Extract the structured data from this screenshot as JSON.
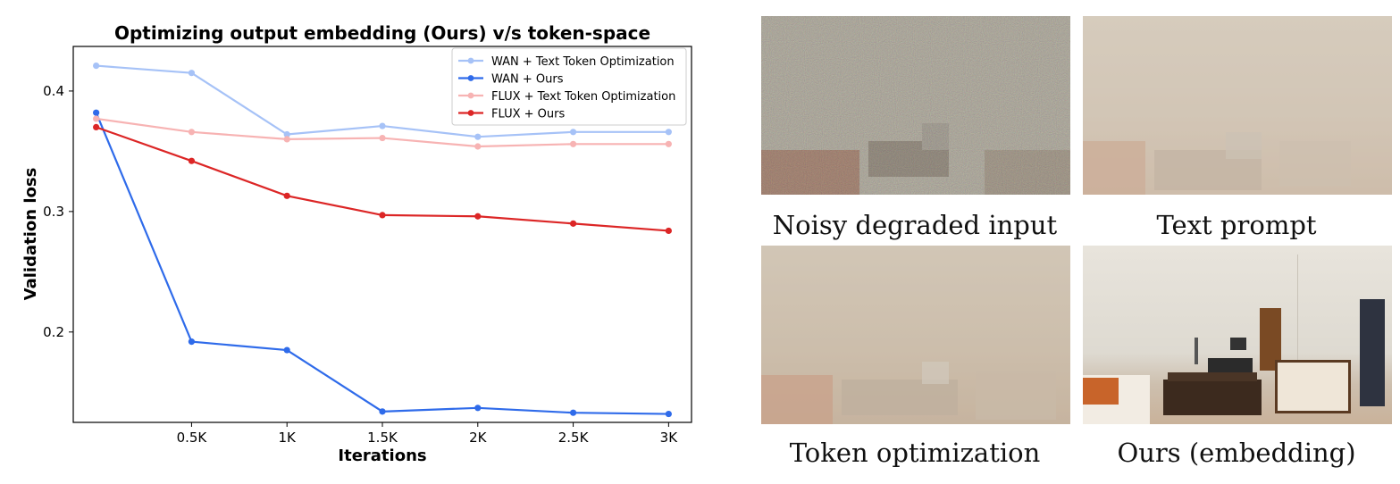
{
  "chart_data": {
    "type": "line",
    "title": "Optimizing output embedding (Ours) v/s token-space",
    "xlabel": "Iterations",
    "ylabel": "Validation loss",
    "x": [
      0,
      500,
      1000,
      1500,
      2000,
      2500,
      3000
    ],
    "xticks": [
      500,
      1000,
      1500,
      2000,
      2500,
      3000
    ],
    "xtick_labels": [
      "0.5K",
      "1K",
      "1.5K",
      "2K",
      "2.5K",
      "3K"
    ],
    "yticks": [
      0.2,
      0.3,
      0.4
    ],
    "ytick_labels": [
      "0.2",
      "0.3",
      "0.4"
    ],
    "xlim": [
      -120,
      3120
    ],
    "ylim": [
      0.125,
      0.437
    ],
    "grid": false,
    "legend_position": "top-right",
    "series": [
      {
        "name": "WAN + Text Token Optimization",
        "color": "#a6c2f7",
        "values": [
          0.421,
          0.415,
          0.364,
          0.371,
          0.362,
          0.366,
          0.366
        ]
      },
      {
        "name": "WAN + Ours",
        "color": "#2f6bea",
        "values": [
          0.382,
          0.192,
          0.185,
          0.134,
          0.137,
          0.133,
          0.132
        ]
      },
      {
        "name": "FLUX + Text Token Optimization",
        "color": "#f7b3b3",
        "values": [
          0.377,
          0.366,
          0.36,
          0.361,
          0.354,
          0.356,
          0.356
        ]
      },
      {
        "name": "FLUX + Ours",
        "color": "#dc2626",
        "values": [
          0.37,
          0.342,
          0.313,
          0.297,
          0.296,
          0.29,
          0.284
        ]
      }
    ]
  },
  "panels": [
    {
      "caption": "Noisy degraded input",
      "icon": "noisy-room-image"
    },
    {
      "caption": "Text prompt",
      "icon": "hazy-room-image"
    },
    {
      "caption": "Token optimization",
      "icon": "hazy-room-image"
    },
    {
      "caption": "Ours (embedding)",
      "icon": "clear-room-image"
    }
  ]
}
